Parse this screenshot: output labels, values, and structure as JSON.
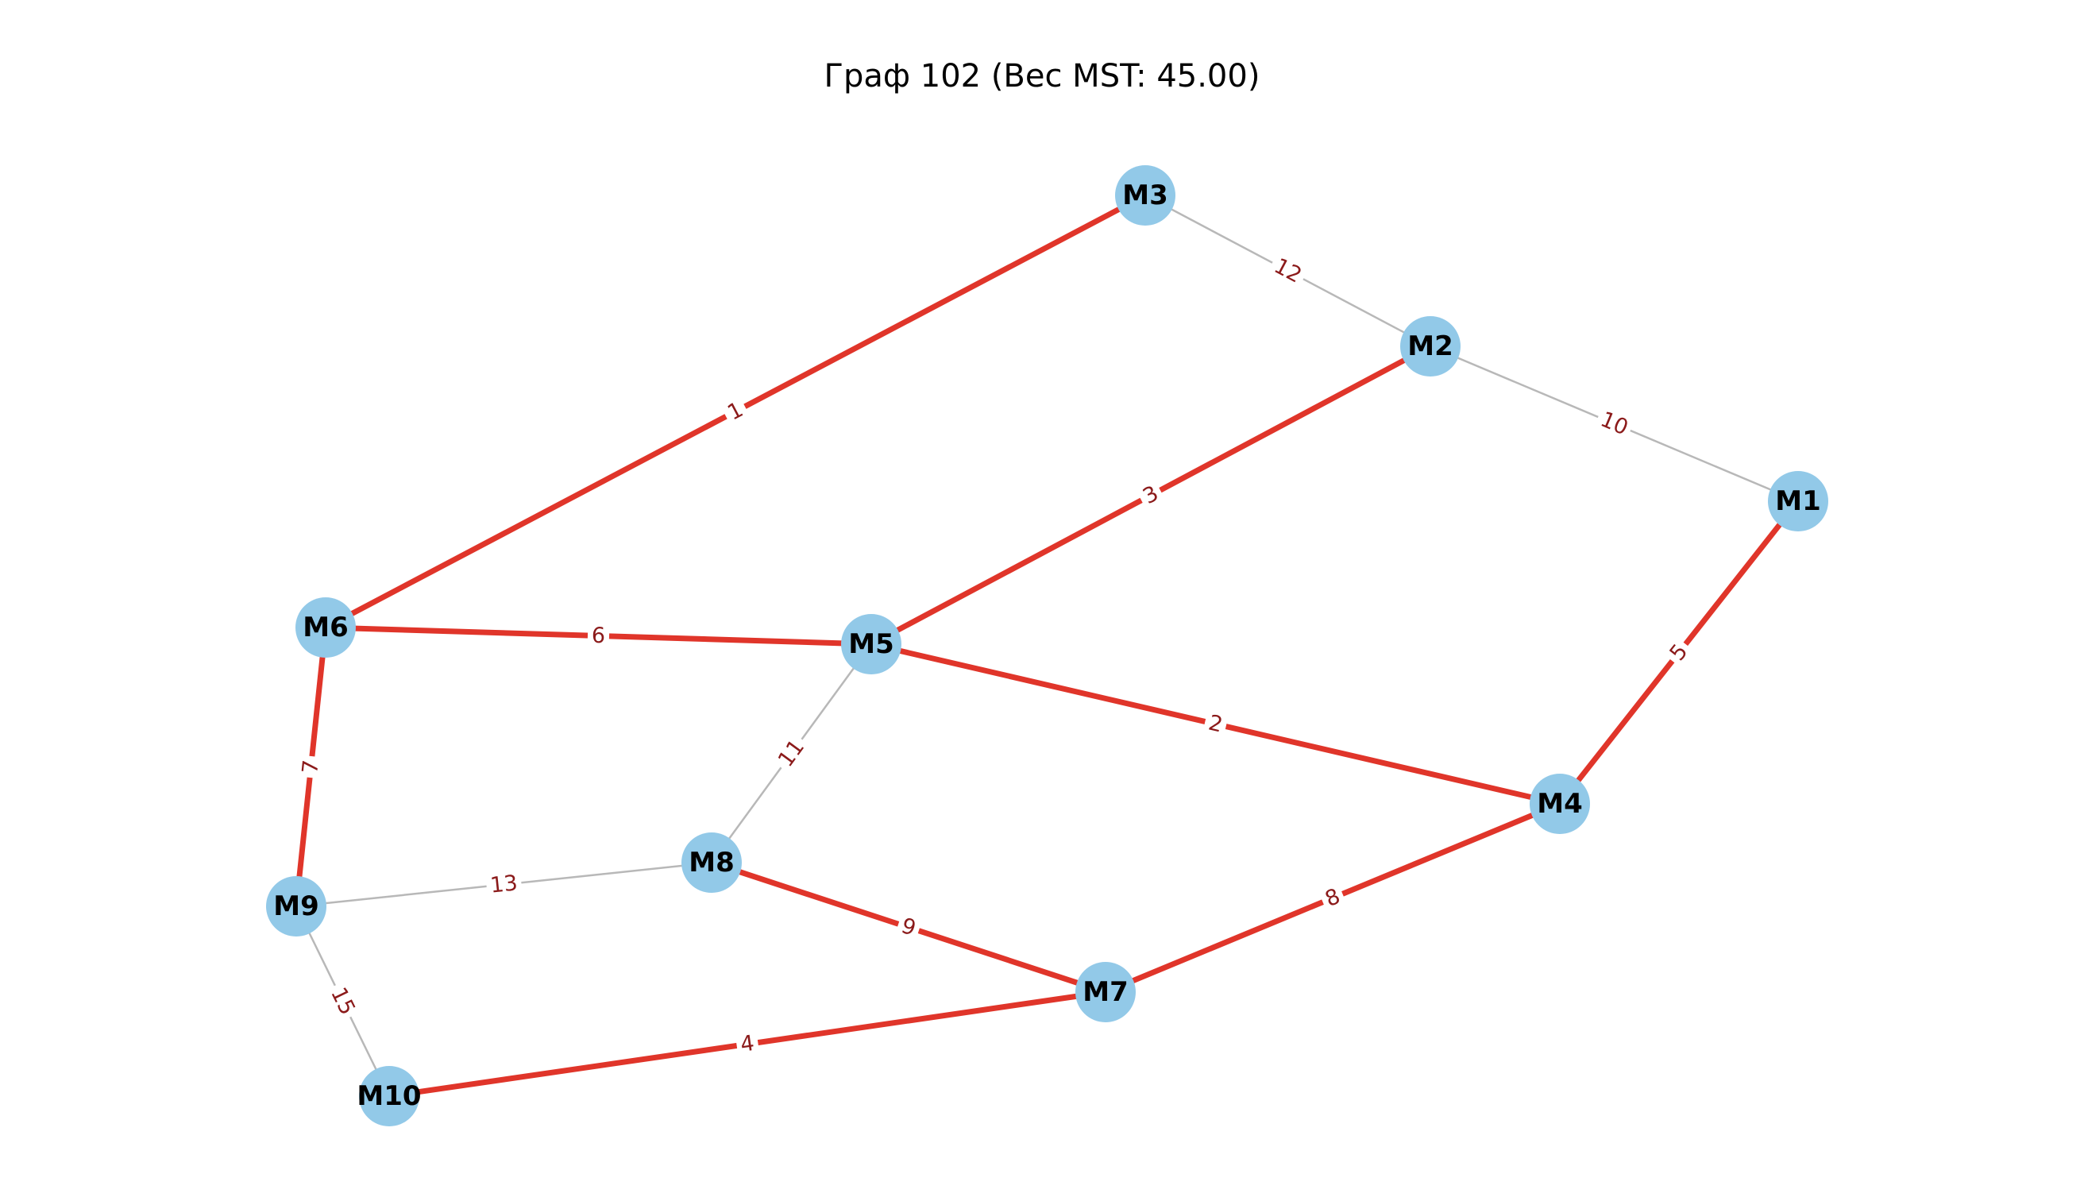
{
  "title": "Граф 102 (Вес MST: 45.00)",
  "colors": {
    "node_fill": "#92c9e8",
    "mst_edge": "#e0352a",
    "other_edge": "#b8b8b8",
    "edge_label": "#8b1a1a",
    "node_label": "#000000"
  },
  "nodes": [
    {
      "id": "M1",
      "label": "M1"
    },
    {
      "id": "M2",
      "label": "M2"
    },
    {
      "id": "M3",
      "label": "M3"
    },
    {
      "id": "M4",
      "label": "M4"
    },
    {
      "id": "M5",
      "label": "M5"
    },
    {
      "id": "M6",
      "label": "M6"
    },
    {
      "id": "M7",
      "label": "M7"
    },
    {
      "id": "M8",
      "label": "M8"
    },
    {
      "id": "M9",
      "label": "M9"
    },
    {
      "id": "M10",
      "label": "M10"
    }
  ],
  "edges": [
    {
      "from": "M3",
      "to": "M6",
      "weight": "1",
      "in_mst": true
    },
    {
      "from": "M5",
      "to": "M4",
      "weight": "2",
      "in_mst": true
    },
    {
      "from": "M2",
      "to": "M5",
      "weight": "3",
      "in_mst": true
    },
    {
      "from": "M10",
      "to": "M7",
      "weight": "4",
      "in_mst": true
    },
    {
      "from": "M1",
      "to": "M4",
      "weight": "5",
      "in_mst": true
    },
    {
      "from": "M6",
      "to": "M5",
      "weight": "6",
      "in_mst": true
    },
    {
      "from": "M6",
      "to": "M9",
      "weight": "7",
      "in_mst": true
    },
    {
      "from": "M7",
      "to": "M4",
      "weight": "8",
      "in_mst": true
    },
    {
      "from": "M8",
      "to": "M7",
      "weight": "9",
      "in_mst": true
    },
    {
      "from": "M2",
      "to": "M1",
      "weight": "10",
      "in_mst": false
    },
    {
      "from": "M5",
      "to": "M8",
      "weight": "11",
      "in_mst": false
    },
    {
      "from": "M3",
      "to": "M2",
      "weight": "12",
      "in_mst": false
    },
    {
      "from": "M9",
      "to": "M8",
      "weight": "13",
      "in_mst": false
    },
    {
      "from": "M9",
      "to": "M10",
      "weight": "15",
      "in_mst": false
    }
  ]
}
